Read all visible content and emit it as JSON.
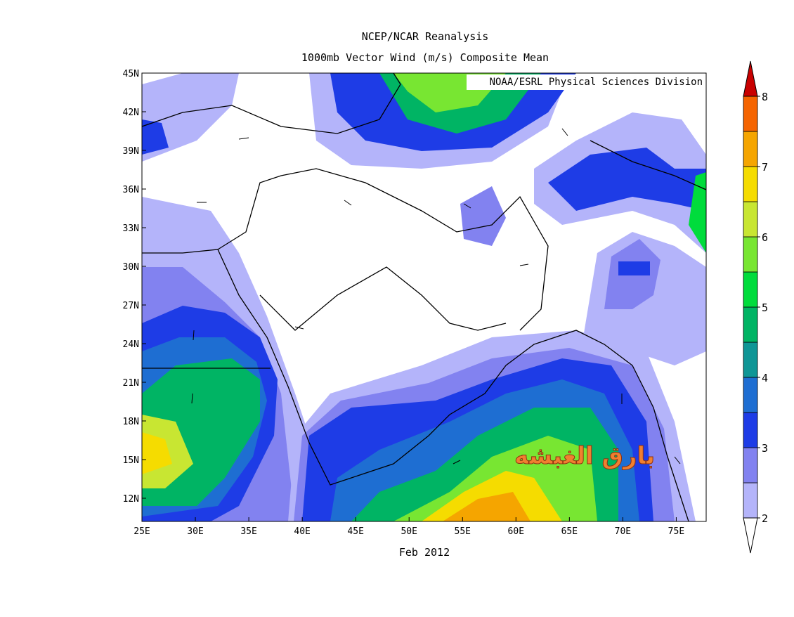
{
  "map": {
    "title": [
      "NCEP/NCAR Reanalysis",
      "1000mb Vector Wind (m/s) Composite Mean"
    ],
    "xlabel": "Feb 2012",
    "credit": "NOAA/ESRL Physical Sciences Division",
    "watermark": "بارق الغبشه",
    "xlim": [
      25,
      77.8
    ],
    "ylim": [
      10.2,
      45
    ],
    "xticks": [
      {
        "value": 25,
        "label": "25E"
      },
      {
        "value": 30,
        "label": "30E"
      },
      {
        "value": 35,
        "label": "35E"
      },
      {
        "value": 40,
        "label": "40E"
      },
      {
        "value": 45,
        "label": "45E"
      },
      {
        "value": 50,
        "label": "50E"
      },
      {
        "value": 55,
        "label": "55E"
      },
      {
        "value": 60,
        "label": "60E"
      },
      {
        "value": 65,
        "label": "65E"
      },
      {
        "value": 70,
        "label": "70E"
      },
      {
        "value": 75,
        "label": "75E"
      }
    ],
    "yticks": [
      {
        "value": 12,
        "label": "12N"
      },
      {
        "value": 15,
        "label": "15N"
      },
      {
        "value": 18,
        "label": "18N"
      },
      {
        "value": 21,
        "label": "21N"
      },
      {
        "value": 24,
        "label": "24N"
      },
      {
        "value": 27,
        "label": "27N"
      },
      {
        "value": 30,
        "label": "30N"
      },
      {
        "value": 33,
        "label": "33N"
      },
      {
        "value": 36,
        "label": "36N"
      },
      {
        "value": 39,
        "label": "39N"
      },
      {
        "value": 42,
        "label": "42N"
      },
      {
        "value": 45,
        "label": "45N"
      }
    ],
    "colorbar": {
      "lim": [
        2,
        8
      ],
      "ticks": [
        2,
        3,
        4,
        5,
        6,
        7,
        8
      ],
      "colors": [
        "#b4b4fa",
        "#8282f0",
        "#1e3ce6",
        "#1e6ed2",
        "#0f9696",
        "#00b464",
        "#00dc3c",
        "#78e632",
        "#c8e632",
        "#f5dc00",
        "#f5a500",
        "#f56400"
      ],
      "over": "#c80000",
      "under": "#ffffff"
    }
  }
}
